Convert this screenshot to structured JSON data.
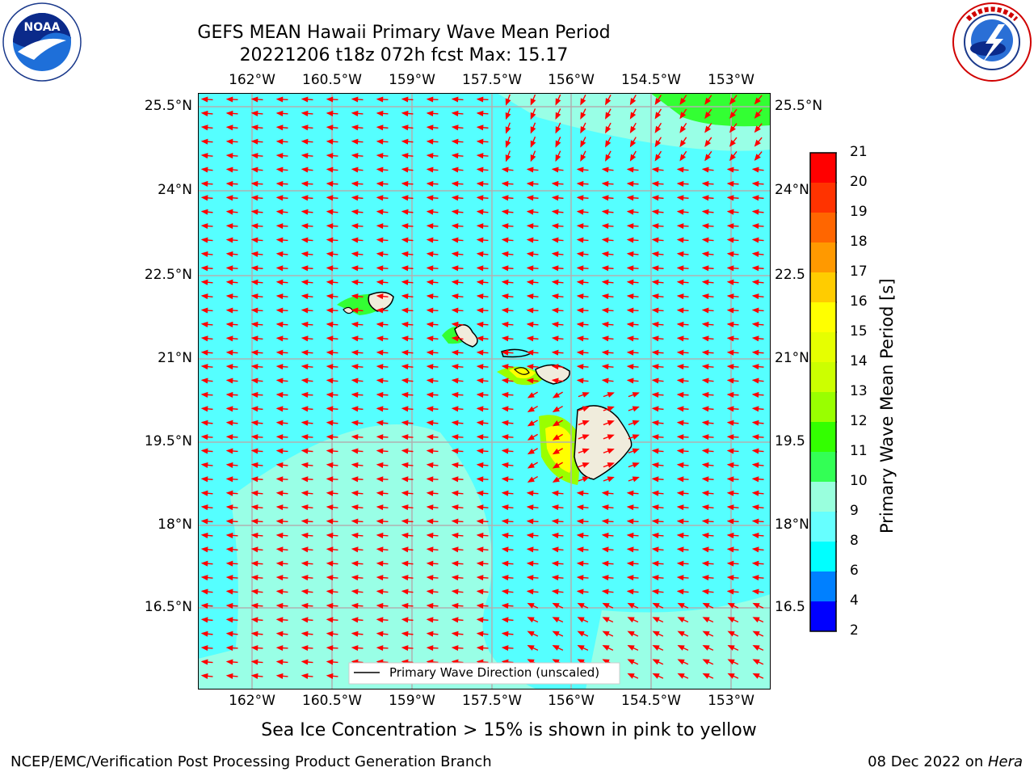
{
  "header": {
    "title_line1": "GEFS MEAN Hawaii Primary Wave Mean Period",
    "title_line2": "20221206 t18z 072h fcst   Max: 15.17"
  },
  "logos": {
    "left": {
      "name": "noaa-logo",
      "text": "NOAA",
      "ring_text": "NATIONAL OCEANIC AND ATMOSPHERIC ADMINISTRATION · U.S. DEPARTMENT OF COMMERCE"
    },
    "right": {
      "name": "nws-logo",
      "ring_text": "NATIONAL WEATHER SERVICE"
    }
  },
  "map": {
    "lon_labels": [
      "162°W",
      "160.5°W",
      "159°W",
      "157.5°W",
      "156°W",
      "154.5°W",
      "153°W"
    ],
    "lat_labels_left": [
      "25.5°N",
      "24°N",
      "22.5°N",
      "21°N",
      "19.5°N",
      "18°N",
      "16.5°N"
    ],
    "lat_labels_right": [
      "25.5°N",
      "24°N",
      "22.5",
      "21°N",
      "19.5",
      "18°N",
      "16.5"
    ],
    "legend_text": "Primary Wave Direction (unscaled)",
    "colors": {
      "base": "#55ffff",
      "light": "#99ffe6",
      "green": "#33ff33",
      "land": "#f0ecdc",
      "arrow": "#ff0000"
    }
  },
  "colorbar": {
    "label": "Primary Wave Mean Period [s]",
    "ticks": [
      "21",
      "20",
      "19",
      "18",
      "17",
      "16",
      "15",
      "14",
      "13",
      "12",
      "11",
      "10",
      "9",
      "8",
      "6",
      "4",
      "2"
    ],
    "colors": [
      "#ff0000",
      "#ff3300",
      "#ff6600",
      "#ff9900",
      "#ffcc00",
      "#ffff00",
      "#e6ff00",
      "#ccff00",
      "#99ff00",
      "#33ff00",
      "#33ff55",
      "#99ffdd",
      "#66ffff",
      "#00ffff",
      "#0080ff",
      "#0000ff"
    ]
  },
  "subtitle": "Sea Ice Concentration > 15% is shown in pink to yellow",
  "footer": {
    "left": "NCEP/EMC/Verification Post Processing Product Generation Branch",
    "right_prefix": "08 Dec 2022 on ",
    "right_italic": "Hera"
  }
}
